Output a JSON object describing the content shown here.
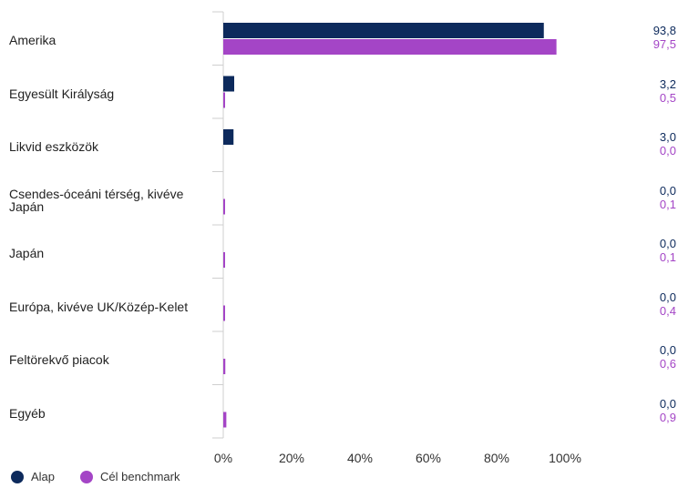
{
  "chart_data": {
    "type": "bar",
    "orientation": "horizontal",
    "categories": [
      "Amerika",
      "Egyesült Királyság",
      "Likvid eszközök",
      "Csendes-óceáni térség, kivéve Japán",
      "Japán",
      "Európa, kivéve UK/Közép-Kelet",
      "Feltörekvő piacok",
      "Egyéb"
    ],
    "series": [
      {
        "name": "Alap",
        "color": "#0d2a5c",
        "values": [
          93.8,
          3.2,
          3.0,
          0.0,
          0.0,
          0.0,
          0.0,
          0.0
        ],
        "labels": [
          "93,8",
          "3,2",
          "3,0",
          "0,0",
          "0,0",
          "0,0",
          "0,0",
          "0,0"
        ]
      },
      {
        "name": "Cél benchmark",
        "color": "#a445c6",
        "values": [
          97.5,
          0.5,
          0.0,
          0.1,
          0.1,
          0.4,
          0.6,
          0.9
        ],
        "labels": [
          "97,5",
          "0,5",
          "0,0",
          "0,1",
          "0,1",
          "0,4",
          "0,6",
          "0,9"
        ]
      }
    ],
    "xlim": [
      0,
      120
    ],
    "xticks": [
      "0%",
      "20%",
      "40%",
      "60%",
      "80%",
      "100%"
    ],
    "xtick_values": [
      0,
      20,
      40,
      60,
      80,
      100
    ],
    "grid": false,
    "legend": "bottom-left"
  }
}
